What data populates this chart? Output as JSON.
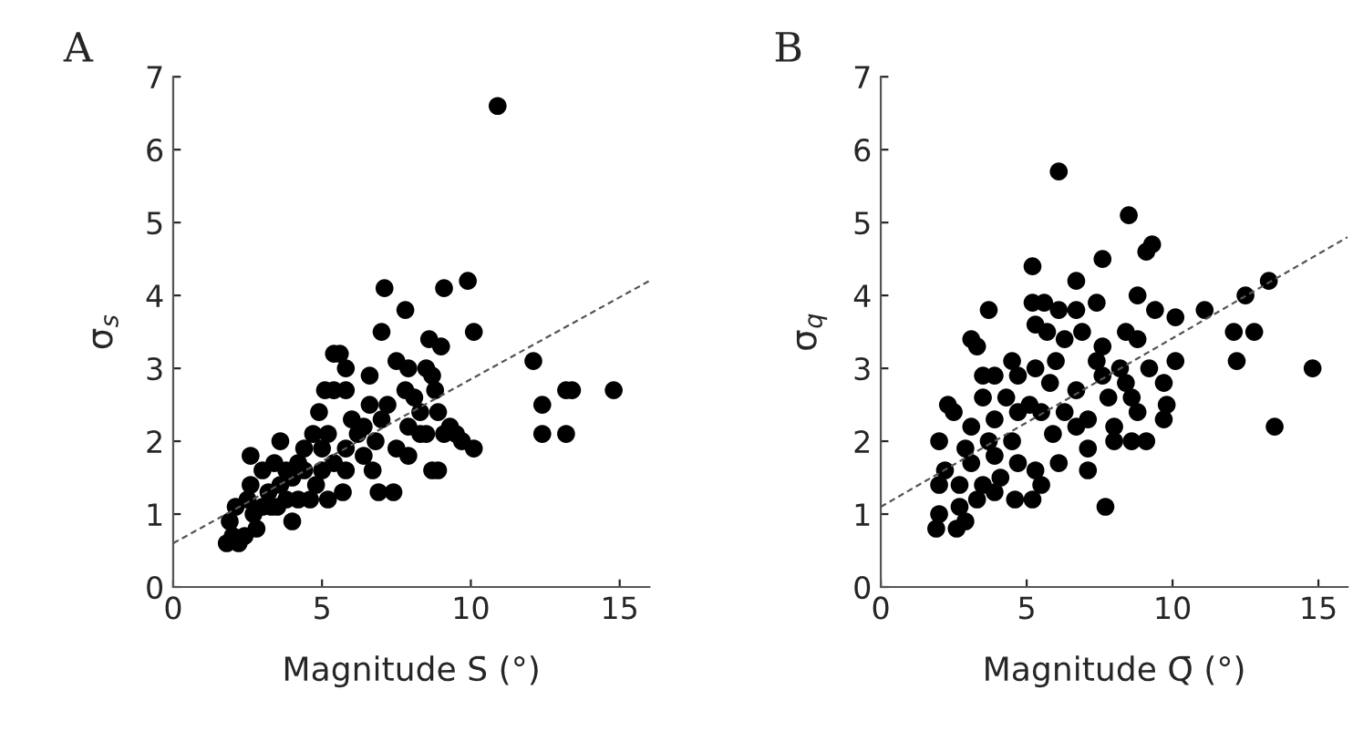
{
  "chart_data": [
    {
      "type": "scatter",
      "title": "A",
      "xlabel": "Magnitude S̄ (°)",
      "ylabel": "σ$_{s}$",
      "xlim": [
        0,
        16
      ],
      "ylim": [
        0,
        7
      ],
      "xticks": [
        0,
        5,
        10,
        15
      ],
      "yticks": [
        0,
        1,
        2,
        3,
        4,
        5,
        6,
        7
      ],
      "grid": false,
      "legend": false,
      "marker": "circle",
      "series": [
        {
          "type": "scatter",
          "color": "#000000",
          "x": [
            10.9,
            7.1,
            9.1,
            9.9,
            7.8,
            7.0,
            10.1,
            8.6,
            9.0,
            5.4,
            5.6,
            5.8,
            6.6,
            7.5,
            7.9,
            8.5,
            8.7,
            12.1,
            12.4,
            13.2,
            13.4,
            14.8,
            12.4,
            13.2,
            5.1,
            5.4,
            5.8,
            7.8,
            8.8,
            4.9,
            6.0,
            7.2,
            8.3,
            9.3,
            10.1,
            9.7,
            8.7,
            8.9,
            6.9,
            7.4,
            5.7,
            6.7,
            7.9,
            2.6,
            3.6,
            4.7,
            5.2,
            6.4,
            7.0,
            7.9,
            8.5,
            3.4,
            4.2,
            5.0,
            5.8,
            4.6,
            4.0,
            3.8,
            3.2,
            2.6,
            2.1,
            1.9,
            1.8,
            2.2,
            2.8,
            3.0,
            2.4,
            2.0,
            2.7,
            3.3,
            3.6,
            4.0,
            4.4,
            4.8,
            5.2,
            5.4,
            6.2,
            6.8,
            7.5,
            8.3,
            9.1,
            9.5,
            6.4,
            5.8,
            5.0,
            4.4,
            3.8,
            3.0,
            2.5,
            3.5,
            4.2,
            6.6,
            8.1,
            8.9
          ],
          "values": [
            6.6,
            4.1,
            4.1,
            4.2,
            3.8,
            3.5,
            3.5,
            3.4,
            3.3,
            3.2,
            3.2,
            3.0,
            2.9,
            3.1,
            3.0,
            3.0,
            2.9,
            3.1,
            2.5,
            2.7,
            2.7,
            2.7,
            2.1,
            2.1,
            2.7,
            2.7,
            2.7,
            2.7,
            2.7,
            2.4,
            2.3,
            2.5,
            2.4,
            2.2,
            1.9,
            2.0,
            1.6,
            1.6,
            1.3,
            1.3,
            1.3,
            1.6,
            1.8,
            1.8,
            2.0,
            2.1,
            2.1,
            2.2,
            2.3,
            2.2,
            2.1,
            1.7,
            1.7,
            1.6,
            1.9,
            1.2,
            0.9,
            1.2,
            1.3,
            1.4,
            1.1,
            0.9,
            0.6,
            0.6,
            0.8,
            1.1,
            0.7,
            0.7,
            1.0,
            1.1,
            1.4,
            1.5,
            1.6,
            1.4,
            1.2,
            1.7,
            2.1,
            2.0,
            1.9,
            2.1,
            2.1,
            2.1,
            1.8,
            1.6,
            1.9,
            1.9,
            1.6,
            1.6,
            1.2,
            1.1,
            1.2,
            2.5,
            2.6,
            2.4
          ]
        },
        {
          "type": "line",
          "color": "#555555",
          "line_style": "dashed",
          "marker": "none",
          "x": [
            0,
            16
          ],
          "values": [
            0.6,
            4.2
          ]
        }
      ]
    },
    {
      "type": "scatter",
      "title": "B",
      "xlabel": "Magnitude Q̄ (°)",
      "ylabel": "σ$_{q}$",
      "xlim": [
        0,
        16
      ],
      "ylim": [
        0,
        7
      ],
      "xticks": [
        0,
        5,
        10,
        15
      ],
      "yticks": [
        0,
        1,
        2,
        3,
        4,
        5,
        6,
        7
      ],
      "grid": false,
      "legend": false,
      "marker": "circle",
      "series": [
        {
          "type": "scatter",
          "color": "#000000",
          "x": [
            6.1,
            8.5,
            9.1,
            9.3,
            7.6,
            5.2,
            6.7,
            8.8,
            5.2,
            5.6,
            6.1,
            7.4,
            3.7,
            6.7,
            9.4,
            10.1,
            11.1,
            12.5,
            13.3,
            12.1,
            12.8,
            12.2,
            14.8,
            13.5,
            3.1,
            3.3,
            5.3,
            5.7,
            6.3,
            6.9,
            7.6,
            8.4,
            8.8,
            4.5,
            5.3,
            6.0,
            7.4,
            8.2,
            9.2,
            10.1,
            3.5,
            3.9,
            4.7,
            5.8,
            7.6,
            8.4,
            9.7,
            3.5,
            4.3,
            5.1,
            6.7,
            7.8,
            8.6,
            9.8,
            2.3,
            2.5,
            3.1,
            3.9,
            4.7,
            5.5,
            6.3,
            7.1,
            8.0,
            8.8,
            9.7,
            2.0,
            2.9,
            3.7,
            4.5,
            5.9,
            6.7,
            8.0,
            8.6,
            9.1,
            7.1,
            2.2,
            3.1,
            3.9,
            4.7,
            5.3,
            6.1,
            2.0,
            2.7,
            3.5,
            4.1,
            7.1,
            2.0,
            2.7,
            3.3,
            3.9,
            4.6,
            5.2,
            1.9,
            2.6,
            2.9,
            7.7,
            5.5
          ],
          "values": [
            5.7,
            5.1,
            4.6,
            4.7,
            4.5,
            4.4,
            4.2,
            4.0,
            3.9,
            3.9,
            3.8,
            3.9,
            3.8,
            3.8,
            3.8,
            3.7,
            3.8,
            4.0,
            4.2,
            3.5,
            3.5,
            3.1,
            3.0,
            2.2,
            3.4,
            3.3,
            3.6,
            3.5,
            3.4,
            3.5,
            3.3,
            3.5,
            3.4,
            3.1,
            3.0,
            3.1,
            3.1,
            3.0,
            3.0,
            3.1,
            2.9,
            2.9,
            2.9,
            2.8,
            2.9,
            2.8,
            2.8,
            2.6,
            2.6,
            2.5,
            2.7,
            2.6,
            2.6,
            2.5,
            2.5,
            2.4,
            2.2,
            2.3,
            2.4,
            2.4,
            2.4,
            2.3,
            2.2,
            2.4,
            2.3,
            2.0,
            1.9,
            2.0,
            2.0,
            2.1,
            2.2,
            2.0,
            2.0,
            2.0,
            1.9,
            1.6,
            1.7,
            1.8,
            1.7,
            1.6,
            1.7,
            1.4,
            1.4,
            1.4,
            1.5,
            1.6,
            1.0,
            1.1,
            1.2,
            1.3,
            1.2,
            1.2,
            0.8,
            0.8,
            0.9,
            1.1,
            1.4
          ]
        },
        {
          "type": "line",
          "color": "#555555",
          "line_style": "dashed",
          "marker": "none",
          "x": [
            0,
            16
          ],
          "values": [
            1.1,
            4.8
          ]
        }
      ]
    }
  ]
}
